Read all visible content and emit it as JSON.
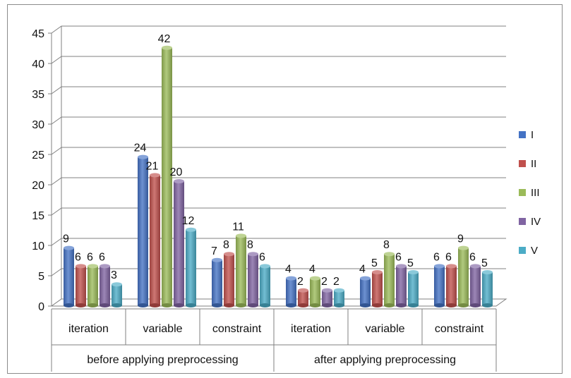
{
  "chart_data": {
    "type": "bar",
    "title": "",
    "xlabel": "",
    "ylabel": "",
    "ylim": [
      0,
      45
    ],
    "yticks": [
      0,
      5,
      10,
      15,
      20,
      25,
      30,
      35,
      40,
      45
    ],
    "grid": true,
    "legend_position": "right",
    "groups": [
      "before applying preprocessing",
      "after applying preprocessing"
    ],
    "categories": [
      "iteration",
      "variable",
      "constraint",
      "iteration",
      "variable",
      "constraint"
    ],
    "series": [
      {
        "name": "I",
        "color": "#4472c4",
        "values": [
          9,
          24,
          7,
          4,
          4,
          6
        ]
      },
      {
        "name": "II",
        "color": "#c0504d",
        "values": [
          6,
          21,
          8,
          2,
          5,
          6
        ]
      },
      {
        "name": "III",
        "color": "#9bbb59",
        "values": [
          6,
          42,
          11,
          4,
          8,
          9
        ]
      },
      {
        "name": "IV",
        "color": "#8064a2",
        "values": [
          6,
          20,
          8,
          2,
          6,
          6
        ]
      },
      {
        "name": "V",
        "color": "#4bacc6",
        "values": [
          3,
          12,
          6,
          2,
          5,
          5
        ]
      }
    ]
  }
}
